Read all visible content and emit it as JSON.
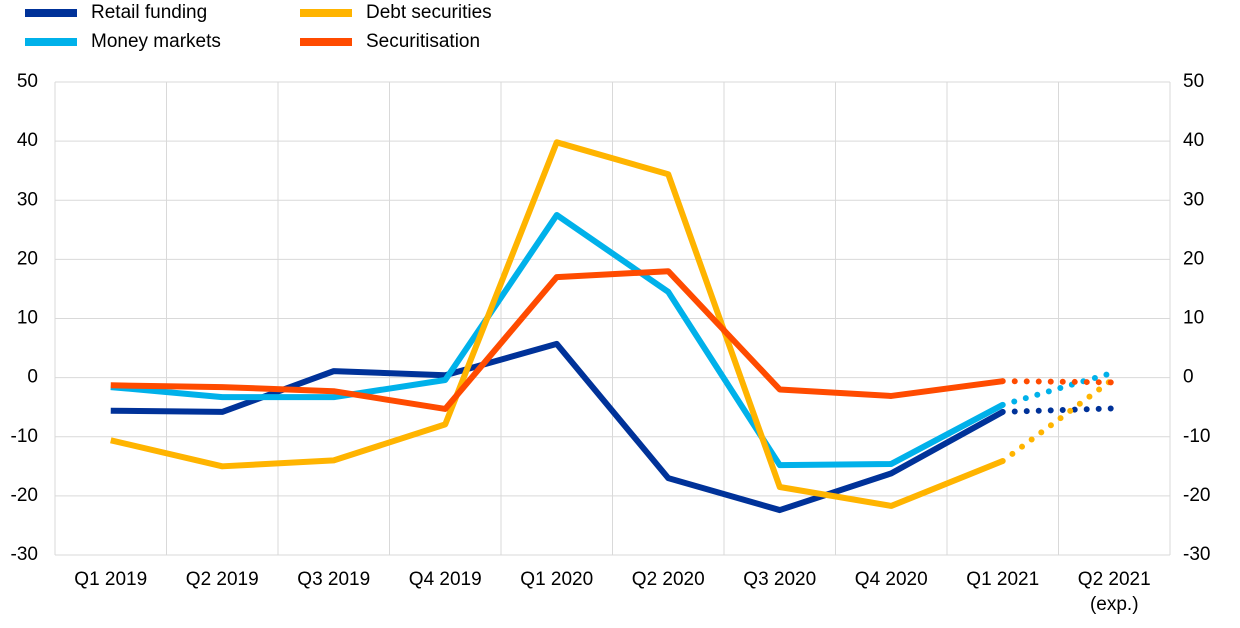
{
  "chart_data": {
    "type": "line",
    "categories": [
      "Q1 2019",
      "Q2 2019",
      "Q3 2019",
      "Q4 2019",
      "Q1 2020",
      "Q2 2020",
      "Q3 2020",
      "Q4 2020",
      "Q1 2021",
      "Q2 2021"
    ],
    "x_note": "(exp.)",
    "series": [
      {
        "name": "Retail funding",
        "color": "#003299",
        "values": [
          -5.6,
          -5.8,
          1.1,
          0.4,
          5.7,
          -17,
          -22.4,
          -16.2,
          -5.8,
          -5.2
        ]
      },
      {
        "name": "Money markets",
        "color": "#00b1ea",
        "values": [
          -1.6,
          -3.3,
          -3.3,
          -0.4,
          27.5,
          14.5,
          -14.8,
          -14.6,
          -4.6,
          0.9
        ]
      },
      {
        "name": "Debt securities",
        "color": "#ffb400",
        "values": [
          -10.6,
          -15,
          -14,
          -7.9,
          39.8,
          34.4,
          -18.5,
          -21.7,
          -14.1,
          -0.1
        ]
      },
      {
        "name": "Securitisation",
        "color": "#ff4b00",
        "values": [
          -1.3,
          -1.6,
          -2.3,
          -5.3,
          17,
          18,
          -2,
          -3.1,
          -0.6,
          -0.8
        ]
      }
    ],
    "ylim": [
      -30,
      50
    ],
    "yticks": [
      -30,
      -20,
      -10,
      0,
      10,
      20,
      30,
      40,
      50
    ],
    "y2lim": [
      -30,
      50
    ],
    "y2ticks": [
      -30,
      -20,
      -10,
      0,
      10,
      20,
      30,
      40,
      50
    ],
    "grid": true,
    "legend": "top-left"
  }
}
